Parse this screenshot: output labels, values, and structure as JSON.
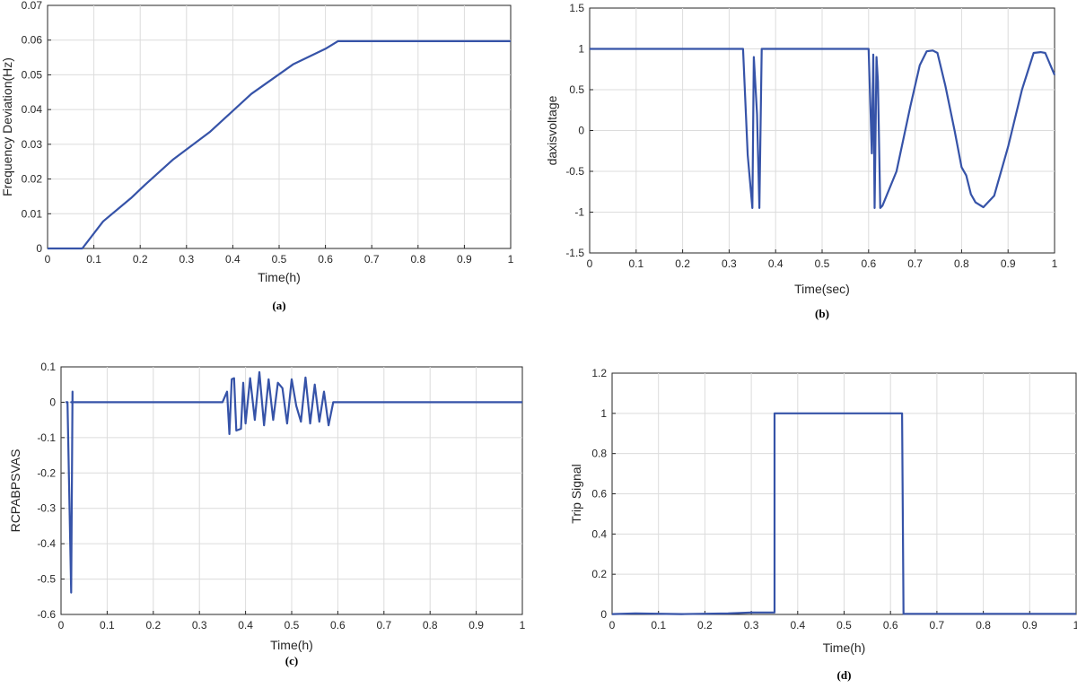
{
  "chart_data": [
    {
      "type": "line",
      "caption": "(a)",
      "xlabel": "Time(h)",
      "ylabel": "Frequency Deviation(Hz)",
      "xlim": [
        0,
        1
      ],
      "ylim": [
        0,
        0.07
      ],
      "xticks": [
        0,
        0.1,
        0.2,
        0.3,
        0.4,
        0.5,
        0.6,
        0.7,
        0.8,
        0.9,
        1
      ],
      "xtick_labels": [
        "0",
        "0.1",
        "0.2",
        "0.3",
        "0.4",
        "0.5",
        "0.6",
        "0.7",
        "0.8",
        "0.9",
        "1"
      ],
      "yticks": [
        0,
        0.01,
        0.02,
        0.03,
        0.04,
        0.05,
        0.06,
        0.07
      ],
      "ytick_labels": [
        "0",
        "0.01",
        "0.02",
        "0.03",
        "0.04",
        "0.05",
        "0.06",
        "0.07"
      ],
      "grid": true,
      "color": "#3653a8",
      "series": [
        {
          "x": [
            0,
            0.075,
            0.12,
            0.18,
            0.21,
            0.27,
            0.35,
            0.44,
            0.53,
            0.6,
            0.627,
            0.7,
            0.8,
            0.9,
            1.0
          ],
          "y": [
            0,
            0,
            0.0078,
            0.0145,
            0.0183,
            0.0255,
            0.0335,
            0.0445,
            0.053,
            0.0575,
            0.0597,
            0.0597,
            0.0597,
            0.0597,
            0.0597
          ]
        }
      ]
    },
    {
      "type": "line",
      "caption": "(b)",
      "xlabel": "Time(sec)",
      "ylabel": "daxisvoltage",
      "xlim": [
        0,
        1
      ],
      "ylim": [
        -1.5,
        1.5
      ],
      "xticks": [
        0,
        0.1,
        0.2,
        0.3,
        0.4,
        0.5,
        0.6,
        0.7,
        0.8,
        0.9,
        1
      ],
      "xtick_labels": [
        "0",
        "0.1",
        "0.2",
        "0.3",
        "0.4",
        "0.5",
        "0.6",
        "0.7",
        "0.8",
        "0.9",
        "1"
      ],
      "yticks": [
        -1.5,
        -1,
        -0.5,
        0,
        0.5,
        1,
        1.5
      ],
      "ytick_labels": [
        "-1.5",
        "-1",
        "-0.5",
        "0",
        "0.5",
        "1",
        "1.5"
      ],
      "grid": true,
      "color": "#3653a8",
      "series": [
        {
          "x": [
            0,
            0.33,
            0.34,
            0.35,
            0.353,
            0.36,
            0.365,
            0.37,
            0.6,
            0.607,
            0.61,
            0.613,
            0.617,
            0.62,
            0.625,
            0.63,
            0.66,
            0.69,
            0.71,
            0.725,
            0.738,
            0.748,
            0.765,
            0.785,
            0.8,
            0.81,
            0.82,
            0.83,
            0.847,
            0.87,
            0.9,
            0.93,
            0.955,
            0.97,
            0.98,
            1.0
          ],
          "y": [
            1,
            1,
            -0.3,
            -0.95,
            0.9,
            0.2,
            -0.95,
            1,
            1,
            -0.28,
            0.93,
            -0.95,
            0.9,
            0.6,
            -0.95,
            -0.92,
            -0.5,
            0.3,
            0.8,
            0.97,
            0.98,
            0.95,
            0.55,
            0.0,
            -0.45,
            -0.55,
            -0.78,
            -0.88,
            -0.94,
            -0.8,
            -0.2,
            0.5,
            0.95,
            0.96,
            0.95,
            0.68
          ]
        }
      ]
    },
    {
      "type": "line",
      "caption": "(c)",
      "xlabel": "Time(h)",
      "ylabel": "RCPABPSVAS",
      "xlim": [
        0,
        1
      ],
      "ylim": [
        -0.6,
        0.1
      ],
      "xticks": [
        0,
        0.1,
        0.2,
        0.3,
        0.4,
        0.5,
        0.6,
        0.7,
        0.8,
        0.9,
        1
      ],
      "xtick_labels": [
        "0",
        "0.1",
        "0.2",
        "0.3",
        "0.4",
        "0.5",
        "0.6",
        "0.7",
        "0.8",
        "0.9",
        "1"
      ],
      "yticks": [
        -0.6,
        -0.5,
        -0.4,
        -0.3,
        -0.2,
        -0.1,
        0,
        0.1
      ],
      "ytick_labels": [
        "-0.6",
        "-0.5",
        "-0.4",
        "-0.3",
        "-0.2",
        "-0.1",
        "0",
        "0.1"
      ],
      "grid": true,
      "color": "#3653a8",
      "series": [
        {
          "x": [
            0.01,
            0.014,
            0.022,
            0.025,
            0.025,
            0.022,
            0.028,
            0.35,
            0.36,
            0.365,
            0.37,
            0.375,
            0.38,
            0.39,
            0.395,
            0.4,
            0.41,
            0.42,
            0.43,
            0.44,
            0.45,
            0.46,
            0.47,
            0.48,
            0.49,
            0.5,
            0.51,
            0.52,
            0.53,
            0.54,
            0.55,
            0.56,
            0.57,
            0.58,
            0.59,
            0.6,
            1.0
          ],
          "y": [
            0,
            0,
            -0.538,
            0.03,
            0,
            0,
            0,
            0,
            0.03,
            -0.09,
            0.065,
            0.068,
            -0.08,
            -0.075,
            0.055,
            -0.06,
            0.068,
            -0.05,
            0.085,
            -0.065,
            0.065,
            -0.05,
            0.055,
            0.04,
            -0.06,
            0.065,
            -0.01,
            -0.055,
            0.07,
            -0.06,
            0.05,
            -0.055,
            0.03,
            -0.065,
            0.0,
            0.0,
            0.0
          ]
        }
      ]
    },
    {
      "type": "line",
      "caption": "(d)",
      "xlabel": "Time(h)",
      "ylabel": "Trip Signal",
      "xlim": [
        0,
        1
      ],
      "ylim": [
        0,
        1.2
      ],
      "xticks": [
        0,
        0.1,
        0.2,
        0.3,
        0.4,
        0.5,
        0.6,
        0.7,
        0.8,
        0.9,
        1
      ],
      "xtick_labels": [
        "0",
        "0.1",
        "0.2",
        "0.3",
        "0.4",
        "0.5",
        "0.6",
        "0.7",
        "0.8",
        "0.9",
        "1"
      ],
      "yticks": [
        0,
        0.2,
        0.4,
        0.6,
        0.8,
        1,
        1.2
      ],
      "ytick_labels": [
        "0",
        "0.2",
        "0.4",
        "0.6",
        "0.8",
        "1",
        "1.2"
      ],
      "grid": true,
      "color": "#3653a8",
      "series": [
        {
          "x": [
            0,
            0.05,
            0.15,
            0.25,
            0.3,
            0.347,
            0.35,
            0.35,
            0.625,
            0.628,
            0.7,
            0.8,
            0.9,
            1.0
          ],
          "y": [
            0.002,
            0.005,
            0.002,
            0.005,
            0.01,
            0.01,
            0.01,
            1,
            1,
            0.003,
            0.003,
            0.003,
            0.003,
            0.003
          ]
        }
      ]
    }
  ]
}
